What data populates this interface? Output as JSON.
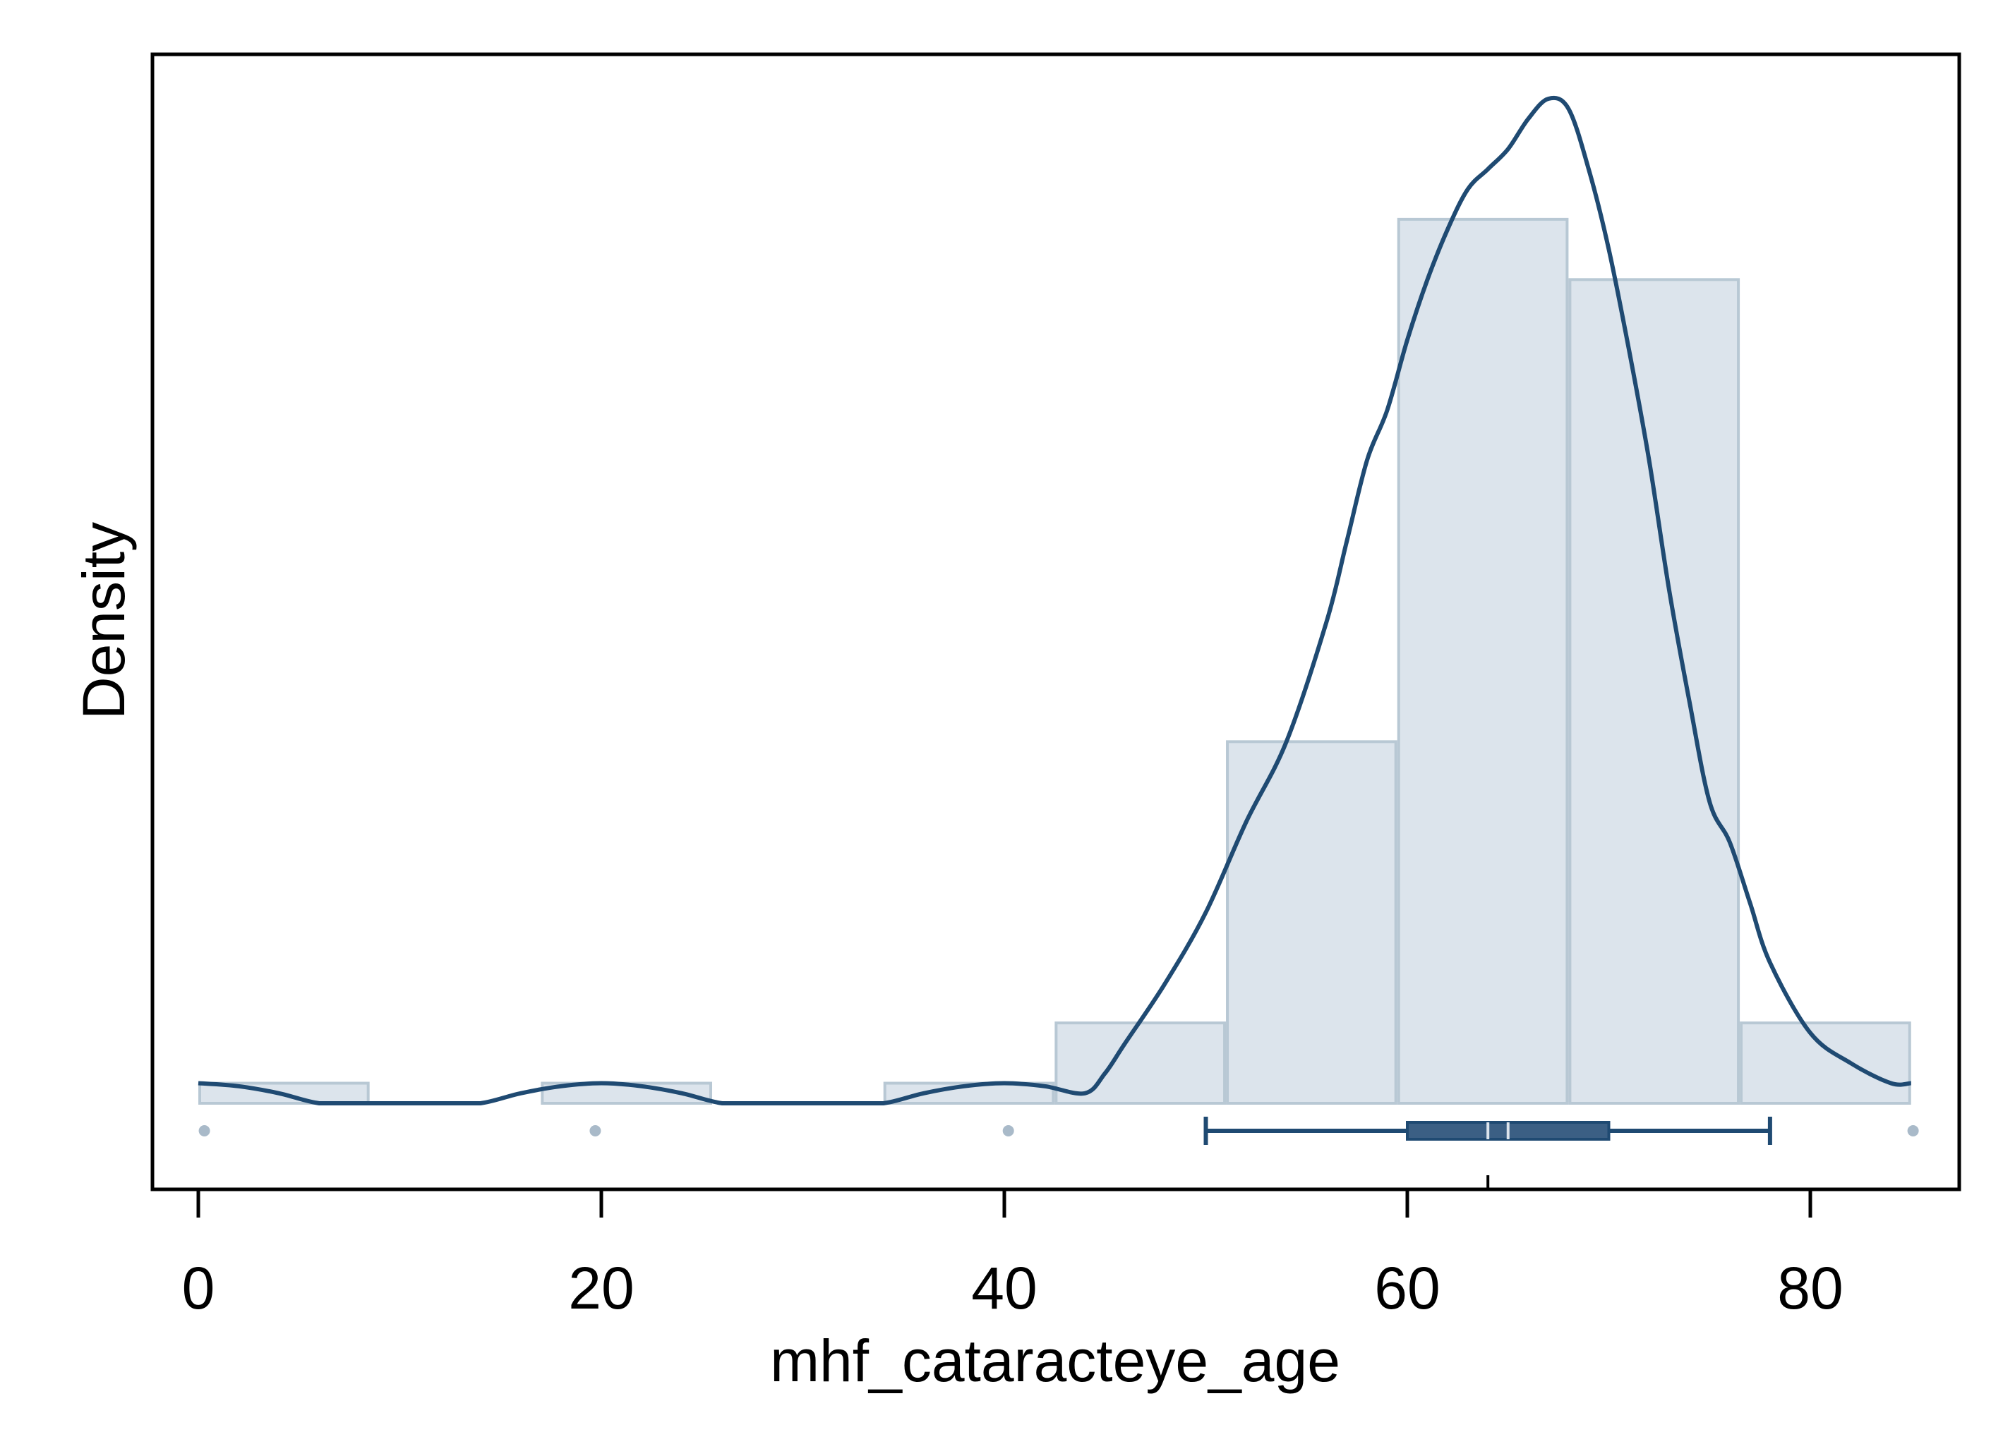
{
  "chart_data": {
    "type": "histogram",
    "xlabel": "mhf_cataracteye_age",
    "ylabel": "Density",
    "xlim": [
      -1,
      87
    ],
    "x_ticks": [
      0,
      20,
      40,
      60,
      80
    ],
    "y_ticks_shown": false,
    "bins": [
      {
        "from": 0,
        "to": 8.5,
        "density": 0.002
      },
      {
        "from": 17,
        "to": 25.5,
        "density": 0.002
      },
      {
        "from": 34,
        "to": 42.5,
        "density": 0.002
      },
      {
        "from": 42.5,
        "to": 51,
        "density": 0.008
      },
      {
        "from": 51,
        "to": 59.5,
        "density": 0.036
      },
      {
        "from": 59.5,
        "to": 68,
        "density": 0.088
      },
      {
        "from": 68,
        "to": 76.5,
        "density": 0.082
      },
      {
        "from": 76.5,
        "to": 85,
        "density": 0.008
      }
    ],
    "density_curve": {
      "x": [
        0,
        2,
        4,
        6,
        8,
        10,
        12,
        14,
        16,
        18,
        20,
        22,
        24,
        26,
        28,
        30,
        32,
        34,
        36,
        38,
        40,
        42,
        44,
        45,
        46,
        48,
        50,
        52,
        54,
        56,
        57,
        58,
        59,
        60,
        61,
        62,
        63,
        64,
        65,
        66,
        67,
        68,
        69,
        70,
        71,
        72,
        73,
        74,
        75,
        76,
        77,
        78,
        80,
        82,
        84,
        85
      ],
      "y": [
        0.002,
        0.0017,
        0.001,
        0.0,
        0.0,
        0.0,
        0.0,
        0.0,
        0.001,
        0.0017,
        0.002,
        0.0017,
        0.001,
        0.0,
        0.0,
        0.0,
        0.0,
        0.0,
        0.001,
        0.0017,
        0.002,
        0.0017,
        0.001,
        0.003,
        0.006,
        0.012,
        0.019,
        0.028,
        0.036,
        0.048,
        0.056,
        0.064,
        0.069,
        0.076,
        0.082,
        0.087,
        0.091,
        0.093,
        0.095,
        0.098,
        0.1,
        0.099,
        0.093,
        0.085,
        0.075,
        0.064,
        0.051,
        0.04,
        0.03,
        0.026,
        0.02,
        0.014,
        0.007,
        0.004,
        0.002,
        0.002
      ]
    },
    "boxplot": {
      "whisker_low": 50,
      "q1": 60,
      "median": 64,
      "mean": 65,
      "q3": 70,
      "whisker_high": 78,
      "outliers": [
        0.3,
        19.7,
        40.2,
        85.1
      ]
    },
    "colors": {
      "bar_fill": "#dce4ec",
      "bar_stroke": "#b8c8d4",
      "curve": "#1f4a72",
      "box": "#3b5f84",
      "outlier": "#a9bac9",
      "frame": "#000000"
    }
  }
}
